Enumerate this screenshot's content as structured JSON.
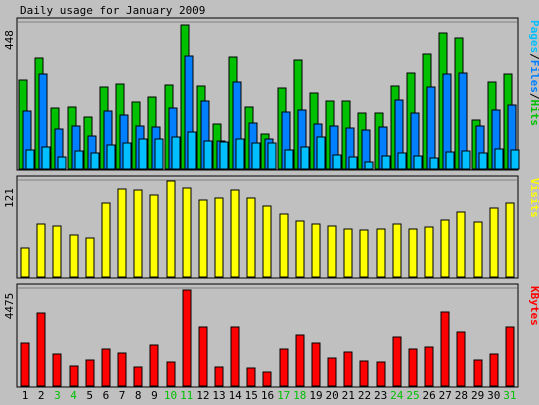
{
  "chart_data": {
    "type": "bar",
    "title": "Daily usage for January 2009",
    "categories": [
      "1",
      "2",
      "3",
      "4",
      "5",
      "6",
      "7",
      "8",
      "9",
      "10",
      "11",
      "12",
      "13",
      "14",
      "15",
      "16",
      "17",
      "18",
      "19",
      "20",
      "21",
      "22",
      "23",
      "24",
      "25",
      "26",
      "27",
      "28",
      "29",
      "30",
      "31"
    ],
    "weekend_days": [
      "3",
      "4",
      "10",
      "11",
      "17",
      "18",
      "24",
      "25",
      "31"
    ],
    "panels": [
      {
        "name": "hits-panel",
        "axis_label": "448",
        "ymax": 448,
        "legend": [
          {
            "text": "Pages",
            "color": "#00c0ff"
          },
          {
            "text": "/",
            "color": "#000000"
          },
          {
            "text": "Files",
            "color": "#0080ff"
          },
          {
            "text": "/",
            "color": "#000000"
          },
          {
            "text": "Hits",
            "color": "#00c000"
          }
        ],
        "series": [
          {
            "name": "Hits",
            "color": "#00c000",
            "values": [
              272,
              338,
              186,
              188,
              158,
              250,
              258,
              204,
              218,
              256,
              438,
              254,
              138,
              340,
              190,
              106,
              246,
              332,
              232,
              206,
              208,
              170,
              172,
              252,
              292,
              350,
              414,
              398,
              150,
              264,
              288
            ]
          },
          {
            "name": "Files",
            "color": "#0080ff",
            "values": [
              176,
              288,
              122,
              130,
              102,
              176,
              164,
              130,
              128,
              186,
              344,
              206,
              86,
              266,
              140,
              92,
              174,
              180,
              136,
              132,
              126,
              120,
              128,
              210,
              172,
              250,
              290,
              292,
              130,
              180,
              196
            ]
          },
          {
            "name": "Pages",
            "color": "#00c0ff",
            "values": [
              58,
              66,
              38,
              54,
              48,
              72,
              80,
              92,
              92,
              98,
              114,
              86,
              82,
              92,
              80,
              78,
              58,
              66,
              96,
              44,
              36,
              22,
              40,
              50,
              40,
              32,
              52,
              56,
              50,
              60,
              58
            ]
          }
        ]
      },
      {
        "name": "visits-panel",
        "axis_label": "121",
        "ymax": 121,
        "legend": [
          {
            "text": "Visits",
            "color": "#ffff00"
          }
        ],
        "series": [
          {
            "name": "Visits",
            "color": "#ffff00",
            "values": [
              36,
              66,
              64,
              52,
              49,
              92,
              110,
              108,
              102,
              120,
              111,
              96,
              98,
              108,
              98,
              89,
              78,
              70,
              66,
              64,
              60,
              59,
              60,
              66,
              60,
              62,
              71,
              81,
              68,
              86,
              92
            ]
          }
        ]
      },
      {
        "name": "kbytes-panel",
        "axis_label": "4475",
        "ymax": 4475,
        "legend": [
          {
            "text": "KBytes",
            "color": "#ff0000"
          }
        ],
        "series": [
          {
            "name": "KBytes",
            "color": "#ff0000",
            "values": [
              1970,
              3350,
              1470,
              930,
              1190,
              1700,
              1490,
              870,
              1850,
              1100,
              4400,
              2690,
              880,
              2690,
              800,
              630,
              1700,
              2310,
              1970,
              1300,
              1550,
              1150,
              1090,
              2260,
              1680,
              1770,
              3370,
              2470,
              1180,
              1480,
              2700
            ]
          }
        ]
      }
    ]
  }
}
